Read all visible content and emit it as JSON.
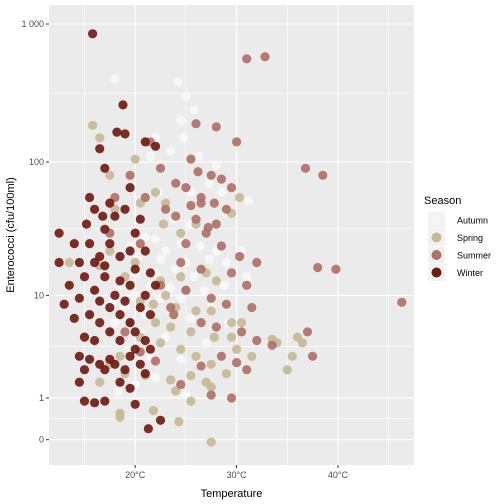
{
  "chart_data": {
    "type": "scatter",
    "title": "",
    "xlabel": "Temperature",
    "ylabel": "Enterococci (cfu/100ml)",
    "x_scale": "linear",
    "y_scale": "log10(y+1)",
    "xlim": [
      11.5,
      47.5
    ],
    "ylim": [
      -0.1,
      1000
    ],
    "x_ticks": [
      {
        "value": 20,
        "label": "20°C"
      },
      {
        "value": 30,
        "label": "30°C"
      },
      {
        "value": 40,
        "label": "40°C"
      }
    ],
    "y_ticks": [
      {
        "value": 0,
        "label": "0"
      },
      {
        "value": 1,
        "label": "1"
      },
      {
        "value": 10,
        "label": "10"
      },
      {
        "value": 100,
        "label": "100"
      },
      {
        "value": 1000,
        "label": "1 000"
      }
    ],
    "grid": true,
    "legend": {
      "title": "Season",
      "position": "right"
    },
    "series": [
      {
        "name": "Autumn",
        "color": "#f7f7f7",
        "points": [
          [
            18.0,
            400
          ],
          [
            24.2,
            380
          ],
          [
            25.0,
            300
          ],
          [
            24.5,
            200
          ],
          [
            25.8,
            240
          ],
          [
            22.0,
            150
          ],
          [
            23.5,
            120
          ],
          [
            24.8,
            150
          ],
          [
            26.3,
            110
          ],
          [
            21.5,
            110
          ],
          [
            27.3,
            70
          ],
          [
            28.0,
            95
          ],
          [
            25.5,
            60
          ],
          [
            22.3,
            60
          ],
          [
            26.5,
            50
          ],
          [
            28.5,
            60
          ],
          [
            31.2,
            52
          ],
          [
            29.0,
            42
          ],
          [
            23.8,
            38
          ],
          [
            25.5,
            35
          ],
          [
            27.2,
            32
          ],
          [
            22.0,
            27
          ],
          [
            21.0,
            28
          ],
          [
            24.5,
            25
          ],
          [
            26.4,
            24
          ],
          [
            28.0,
            22
          ],
          [
            30.5,
            22
          ],
          [
            19.5,
            24
          ],
          [
            23.0,
            22
          ],
          [
            20.3,
            20
          ],
          [
            22.5,
            19
          ],
          [
            25.0,
            18
          ],
          [
            27.3,
            19
          ],
          [
            29.0,
            18
          ],
          [
            24.0,
            16
          ],
          [
            22.0,
            15
          ],
          [
            20.0,
            15
          ],
          [
            25.8,
            14
          ],
          [
            28.8,
            12
          ],
          [
            31.0,
            14
          ],
          [
            18.5,
            12
          ],
          [
            21.5,
            12
          ],
          [
            23.5,
            11.5
          ],
          [
            26.8,
            11
          ],
          [
            20.0,
            10
          ],
          [
            22.5,
            9.5
          ],
          [
            24.5,
            9.5
          ],
          [
            17.8,
            9
          ],
          [
            19.0,
            8
          ],
          [
            27.5,
            8
          ],
          [
            23.5,
            7.5
          ],
          [
            21.0,
            7
          ],
          [
            25.5,
            6.5
          ],
          [
            29.2,
            6
          ],
          [
            18.0,
            6
          ],
          [
            20.5,
            5
          ],
          [
            23.0,
            4.5
          ],
          [
            27.0,
            4
          ],
          [
            19.5,
            3.5
          ],
          [
            21.5,
            3
          ],
          [
            24.5,
            2.8
          ],
          [
            26.5,
            2.5
          ],
          [
            19.0,
            2.2
          ],
          [
            22.0,
            1.8
          ],
          [
            20.0,
            1.5
          ],
          [
            18.3,
            1.2
          ],
          [
            25.0,
            1.1
          ]
        ]
      },
      {
        "name": "Spring",
        "color": "#c4b996",
        "points": [
          [
            15.8,
            185
          ],
          [
            16.5,
            150
          ],
          [
            17.5,
            80
          ],
          [
            20.0,
            105
          ],
          [
            22.0,
            60
          ],
          [
            20.5,
            50
          ],
          [
            18.0,
            45
          ],
          [
            23.0,
            50
          ],
          [
            22.8,
            35
          ],
          [
            24.5,
            30
          ],
          [
            26.0,
            35
          ],
          [
            29.5,
            42
          ],
          [
            30.3,
            55
          ],
          [
            13.5,
            18
          ],
          [
            16.5,
            17
          ],
          [
            17.5,
            22
          ],
          [
            20.0,
            18
          ],
          [
            19.0,
            14
          ],
          [
            22.5,
            13
          ],
          [
            24.5,
            14
          ],
          [
            27.0,
            15
          ],
          [
            28.0,
            13
          ],
          [
            25.0,
            11
          ],
          [
            23.0,
            10
          ],
          [
            20.5,
            9
          ],
          [
            21.8,
            8.5
          ],
          [
            24.0,
            8
          ],
          [
            26.0,
            7.5
          ],
          [
            27.5,
            7.5
          ],
          [
            29.5,
            6
          ],
          [
            30.5,
            6
          ],
          [
            19.5,
            6
          ],
          [
            22.0,
            6
          ],
          [
            23.5,
            5.5
          ],
          [
            25.5,
            5
          ],
          [
            27.8,
            4.5
          ],
          [
            29.5,
            4.5
          ],
          [
            30.0,
            3.5
          ],
          [
            33.5,
            4.3
          ],
          [
            34.0,
            4.0
          ],
          [
            36.0,
            4.5
          ],
          [
            35.5,
            3.0
          ],
          [
            36.5,
            4.0
          ],
          [
            35.0,
            2.2
          ],
          [
            31.5,
            3.0
          ],
          [
            20.5,
            4.5
          ],
          [
            22.5,
            4.0
          ],
          [
            24.5,
            3.5
          ],
          [
            26.0,
            3.0
          ],
          [
            27.5,
            2.5
          ],
          [
            18.5,
            3.0
          ],
          [
            17.5,
            2.5
          ],
          [
            16.5,
            1.6
          ],
          [
            19.0,
            2.0
          ],
          [
            21.0,
            1.9
          ],
          [
            23.5,
            1.7
          ],
          [
            25.5,
            1.9
          ],
          [
            27.0,
            1.6
          ],
          [
            29.0,
            2.0
          ],
          [
            24.0,
            1.25
          ],
          [
            27.5,
            1.4
          ],
          [
            18.5,
            0.55
          ],
          [
            21.8,
            0.62
          ],
          [
            25.5,
            0.9
          ],
          [
            18.5,
            0.45
          ],
          [
            24.3,
            0.35
          ],
          [
            27.5,
            -0.04
          ]
        ]
      },
      {
        "name": "Summer",
        "color": "#b07168",
        "points": [
          [
            26.0,
            190
          ],
          [
            28.0,
            180
          ],
          [
            31.0,
            560
          ],
          [
            32.8,
            580
          ],
          [
            30.0,
            140
          ],
          [
            25.5,
            105
          ],
          [
            26.2,
            85
          ],
          [
            27.5,
            80
          ],
          [
            28.5,
            75
          ],
          [
            36.8,
            90
          ],
          [
            38.5,
            80
          ],
          [
            24.0,
            70
          ],
          [
            25.0,
            65
          ],
          [
            26.5,
            55
          ],
          [
            27.8,
            50
          ],
          [
            29.0,
            45
          ],
          [
            26.0,
            38
          ],
          [
            27.0,
            30
          ],
          [
            25.0,
            25
          ],
          [
            28.5,
            24
          ],
          [
            30.3,
            20
          ],
          [
            32.0,
            18
          ],
          [
            38.0,
            16.5
          ],
          [
            39.8,
            16
          ],
          [
            46.3,
            8.8
          ],
          [
            24.5,
            18
          ],
          [
            26.5,
            16
          ],
          [
            29.5,
            15
          ],
          [
            31.0,
            12
          ],
          [
            25.0,
            11
          ],
          [
            27.5,
            9.5
          ],
          [
            29.0,
            8.5
          ],
          [
            31.5,
            8
          ],
          [
            23.8,
            7
          ],
          [
            26.5,
            6
          ],
          [
            28.0,
            5.5
          ],
          [
            30.5,
            5
          ],
          [
            32.0,
            4.2
          ],
          [
            37.0,
            5
          ],
          [
            33.5,
            3.8
          ],
          [
            37.5,
            3.0
          ],
          [
            28.5,
            3.0
          ],
          [
            30.0,
            2.6
          ],
          [
            31.0,
            2.2
          ],
          [
            26.5,
            2.4
          ],
          [
            24.5,
            1.5
          ],
          [
            27.5,
            1.1
          ],
          [
            29.5,
            1.0
          ],
          [
            22.0,
            2.7
          ],
          [
            20.5,
            3.3
          ],
          [
            19.0,
            5.0
          ],
          [
            23.5,
            8.0
          ],
          [
            22.5,
            12
          ],
          [
            20.5,
            25
          ],
          [
            17.5,
            30
          ],
          [
            18.0,
            55
          ],
          [
            19.5,
            80
          ],
          [
            21.5,
            140
          ],
          [
            22.5,
            90
          ],
          [
            21.0,
            55
          ],
          [
            24.0,
            40
          ],
          [
            25.5,
            48
          ],
          [
            23.0,
            45
          ],
          [
            29.5,
            65
          ],
          [
            28.0,
            35
          ],
          [
            26.5,
            50
          ],
          [
            27.2,
            33
          ]
        ]
      },
      {
        "name": "Winter",
        "color": "#701b13",
        "points": [
          [
            15.8,
            850
          ],
          [
            18.8,
            260
          ],
          [
            18.2,
            165
          ],
          [
            19.0,
            160
          ],
          [
            21.0,
            140
          ],
          [
            22.0,
            130
          ],
          [
            16.5,
            125
          ],
          [
            17.0,
            90
          ],
          [
            19.5,
            65
          ],
          [
            15.5,
            55
          ],
          [
            17.5,
            50
          ],
          [
            19.0,
            45
          ],
          [
            16.0,
            45
          ],
          [
            16.8,
            40
          ],
          [
            18.0,
            40
          ],
          [
            20.5,
            38
          ],
          [
            15.2,
            35
          ],
          [
            17.0,
            32
          ],
          [
            20.0,
            30
          ],
          [
            12.5,
            30
          ],
          [
            14.0,
            25
          ],
          [
            15.5,
            25
          ],
          [
            17.5,
            25
          ],
          [
            19.5,
            22
          ],
          [
            21.0,
            22
          ],
          [
            16.5,
            20
          ],
          [
            18.5,
            20
          ],
          [
            12.5,
            18
          ],
          [
            14.5,
            18
          ],
          [
            16.0,
            18
          ],
          [
            17.0,
            17
          ],
          [
            20.0,
            16
          ],
          [
            21.5,
            15
          ],
          [
            15.0,
            14
          ],
          [
            17.0,
            14
          ],
          [
            18.5,
            13
          ],
          [
            13.5,
            12
          ],
          [
            19.5,
            12
          ],
          [
            22.0,
            12
          ],
          [
            16.0,
            11
          ],
          [
            18.0,
            10
          ],
          [
            21.0,
            10
          ],
          [
            14.5,
            9.5
          ],
          [
            16.5,
            9
          ],
          [
            19.0,
            9
          ],
          [
            13.0,
            8.5
          ],
          [
            17.5,
            8
          ],
          [
            20.5,
            8
          ],
          [
            15.5,
            7
          ],
          [
            18.5,
            7
          ],
          [
            21.5,
            7
          ],
          [
            14.0,
            6.5
          ],
          [
            16.5,
            6
          ],
          [
            19.5,
            6
          ],
          [
            17.5,
            5
          ],
          [
            20.0,
            5
          ],
          [
            15.0,
            4.5
          ],
          [
            16.0,
            4.2
          ],
          [
            18.5,
            4.2
          ],
          [
            21.0,
            4.2
          ],
          [
            20.0,
            3.5
          ],
          [
            21.5,
            3.5
          ],
          [
            14.5,
            3.0
          ],
          [
            15.5,
            2.8
          ],
          [
            17.5,
            2.8
          ],
          [
            19.5,
            3.0
          ],
          [
            16.5,
            2.5
          ],
          [
            18.0,
            2.5
          ],
          [
            20.5,
            2.5
          ],
          [
            15.0,
            2.2
          ],
          [
            17.0,
            2.2
          ],
          [
            19.0,
            2.2
          ],
          [
            21.0,
            2.0
          ],
          [
            14.5,
            1.6
          ],
          [
            18.5,
            1.6
          ],
          [
            19.5,
            1.35
          ],
          [
            15.0,
            0.9
          ],
          [
            16.0,
            0.85
          ],
          [
            17.0,
            0.9
          ],
          [
            20.0,
            0.8
          ],
          [
            22.5,
            0.38
          ],
          [
            21.3,
            0.2
          ]
        ]
      }
    ]
  }
}
